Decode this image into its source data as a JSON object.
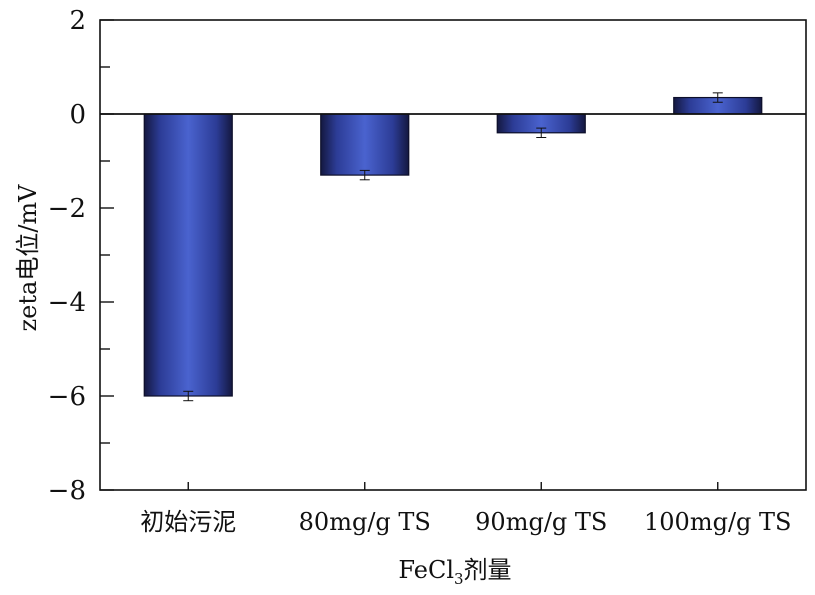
{
  "chart_data": {
    "type": "bar",
    "categories": [
      "初始污泥",
      "80mg/g TS",
      "90mg/g TS",
      "100mg/g TS"
    ],
    "values": [
      -6.0,
      -1.3,
      -0.4,
      0.35
    ],
    "errors": [
      0.1,
      0.1,
      0.1,
      0.1
    ],
    "xlabel_main": "FeCl",
    "xlabel_sub": "3",
    "xlabel_tail": "剂量",
    "ylabel": "zeta电位/mV",
    "ylim": [
      -8,
      2
    ],
    "yticks": [
      2,
      0,
      -2,
      -4,
      -6,
      -8
    ],
    "ytick_labels": [
      "2",
      "0",
      "−2",
      "−4",
      "−6",
      "−8"
    ],
    "grid": false,
    "baseline": 0,
    "bar_color": "#3f55c0",
    "bar_dark": "#1a1f55"
  }
}
